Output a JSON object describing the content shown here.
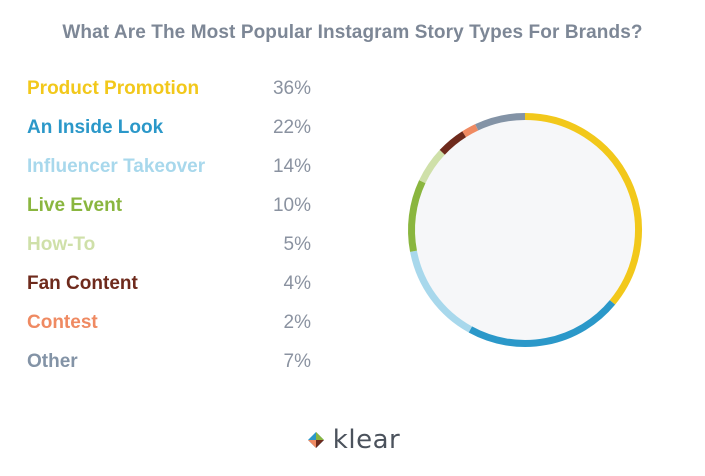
{
  "title": "What Are The Most Popular Instagram Story Types For Brands?",
  "chart_data": {
    "type": "pie",
    "title": "What Are The Most Popular Instagram Story Types For Brands?",
    "categories": [
      "Product Promotion",
      "An Inside Look",
      "Influencer Takeover",
      "Live Event",
      "How-To",
      "Fan Content",
      "Contest",
      "Other"
    ],
    "values": [
      36,
      22,
      14,
      10,
      5,
      4,
      2,
      7
    ],
    "value_labels": [
      "36%",
      "22%",
      "14%",
      "10%",
      "5%",
      "4%",
      "2%",
      "7%"
    ],
    "colors": [
      "#f2c81b",
      "#2b98c9",
      "#a8d8ec",
      "#8ab63f",
      "#cfe0a9",
      "#6e2a1c",
      "#ef8a62",
      "#8393a6"
    ],
    "legend_position": "left",
    "style": "ring with light center"
  },
  "brand": {
    "name": "klear",
    "mark_icon": "klear-logo-icon"
  }
}
